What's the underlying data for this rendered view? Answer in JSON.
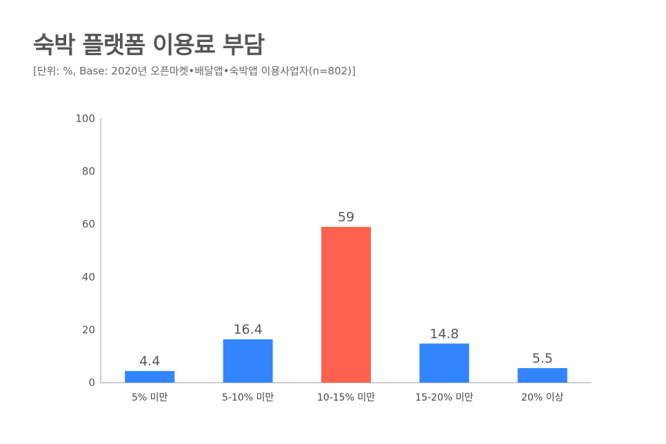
{
  "title": "숙박 플랫폼 이용료 부담",
  "subtitle": "[단위: %, Base: 2020년 오픈마켓•배달앱•숙박앱 이용사업자(n=802)]",
  "colors": {
    "default_bar": "#3385ff",
    "highlight_bar": "#ff6150",
    "axis": "#999999"
  },
  "chart_data": {
    "type": "bar",
    "categories": [
      "5% 미만",
      "5-10% 미만",
      "10-15% 미만",
      "15-20% 미만",
      "20% 이상"
    ],
    "values": [
      4.4,
      16.4,
      59,
      14.8,
      5.5
    ],
    "data_labels": [
      "4.4",
      "16.4",
      "59",
      "14.8",
      "5.5"
    ],
    "highlight_index": 2,
    "ylim": [
      0,
      100
    ],
    "yticks": [
      0,
      20,
      40,
      60,
      80,
      100
    ],
    "xlabel": "",
    "ylabel": "",
    "grid": false,
    "legend": "none"
  }
}
